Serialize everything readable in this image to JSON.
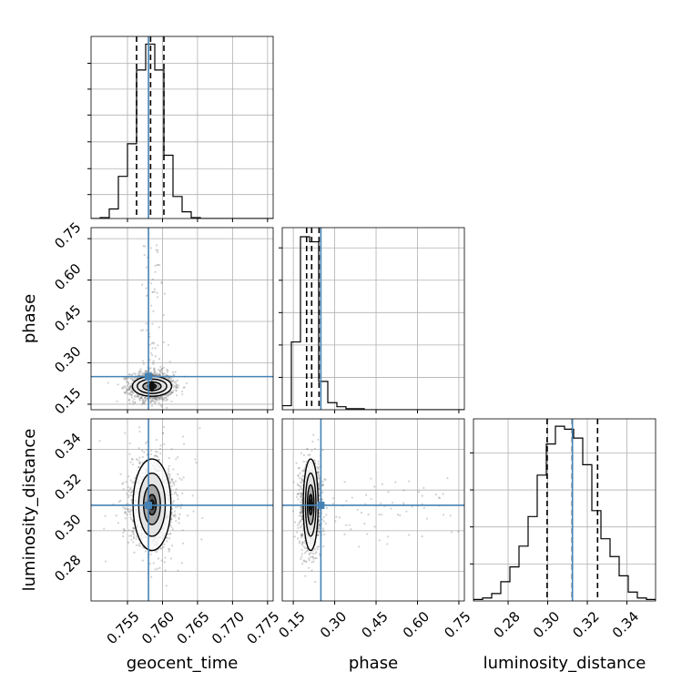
{
  "chart_data": {
    "type": "corner",
    "parameters": [
      "geocent_time",
      "phase",
      "luminosity_distance"
    ],
    "truths": {
      "geocent_time": 0.758,
      "phase": 0.25,
      "luminosity_distance": 0.3125
    },
    "colors": {
      "truth": "#4682b4",
      "histogram": "#000000",
      "grid": "#b0b0b0",
      "scatter": "#7f7f7f"
    },
    "grid": true,
    "panels": {
      "geocent_time": {
        "xlim": [
          0.7498,
          0.7758
        ],
        "ticks": [
          0.755,
          0.76,
          0.765,
          0.77,
          0.775
        ],
        "tick_labels": [
          "0.755",
          "0.760",
          "0.765",
          "0.770",
          "0.775"
        ],
        "quantiles": [
          0.7563,
          0.7583,
          0.7602
        ],
        "hist_edges": [
          0.7498,
          0.7511,
          0.7524,
          0.7537,
          0.755,
          0.7563,
          0.7576,
          0.7589,
          0.7602,
          0.7615,
          0.7628,
          0.7641,
          0.7654,
          0.7667,
          0.768,
          0.7693,
          0.7706,
          0.7719,
          0.7732,
          0.7745,
          0.7758
        ],
        "hist_values": [
          0,
          1,
          10,
          44,
          78,
          155,
          182,
          155,
          66,
          23,
          7,
          1,
          0,
          0,
          0,
          0,
          0,
          0,
          0,
          0
        ]
      },
      "phase": {
        "xlim": [
          0.11,
          0.77
        ],
        "ticks": [
          0.15,
          0.3,
          0.45,
          0.6,
          0.75
        ],
        "tick_labels": [
          "0.15",
          "0.30",
          "0.45",
          "0.60",
          "0.75"
        ],
        "quantiles": [
          0.1983,
          0.2166,
          0.2433
        ],
        "hist_edges": [
          0.11,
          0.143,
          0.176,
          0.209,
          0.242,
          0.275,
          0.308,
          0.341,
          0.374,
          0.407,
          0.44,
          0.473,
          0.506,
          0.539,
          0.572,
          0.605,
          0.638,
          0.671,
          0.704,
          0.737,
          0.77
        ],
        "hist_values": [
          4,
          67,
          171,
          166,
          28,
          7,
          3,
          1,
          1,
          0,
          0,
          0,
          0,
          0,
          0,
          0,
          0,
          0,
          0,
          0
        ]
      },
      "luminosity_distance": {
        "xlim": [
          0.2625,
          0.3545
        ],
        "ticks": [
          0.28,
          0.3,
          0.32,
          0.34
        ],
        "tick_labels": [
          "0.28",
          "0.30",
          "0.32",
          "0.34"
        ],
        "quantiles": [
          0.2997,
          0.3124,
          0.3252
        ],
        "hist_edges": [
          0.2625,
          0.2671,
          0.2717,
          0.2763,
          0.2809,
          0.2855,
          0.2901,
          0.2947,
          0.2993,
          0.3039,
          0.3085,
          0.3131,
          0.3177,
          0.3223,
          0.3269,
          0.3315,
          0.3361,
          0.3407,
          0.3453,
          0.3499,
          0.3545
        ],
        "hist_values": [
          1,
          2,
          5,
          13,
          23,
          37,
          57,
          85,
          106,
          118,
          116,
          110,
          92,
          61,
          42,
          30,
          17,
          6,
          2,
          1
        ]
      }
    },
    "diag_yticks": {
      "geocent_time": [
        25,
        52,
        80,
        108,
        135,
        162
      ],
      "phase": [
        32,
        64,
        96,
        128,
        160
      ],
      "luminosity_distance": [
        25,
        50,
        75,
        100
      ]
    },
    "diag_ylim": {
      "geocent_time": [
        0,
        190
      ],
      "phase": [
        0,
        180
      ],
      "luminosity_distance": [
        0,
        123
      ]
    },
    "ylims": {
      "phase": [
        0.13,
        0.79
      ],
      "luminosity_distance": [
        0.2655,
        0.355
      ]
    },
    "yticks": {
      "phase": {
        "values": [
          0.15,
          0.3,
          0.45,
          0.6,
          0.75
        ],
        "labels": [
          "0.15",
          "0.30",
          "0.45",
          "0.60",
          "0.75"
        ]
      },
      "luminosity_distance": {
        "values": [
          0.28,
          0.3,
          0.32,
          0.34
        ],
        "labels": [
          "0.28",
          "0.30",
          "0.32",
          "0.34"
        ]
      }
    },
    "posterior_2d": {
      "phase_vs_geocent_time": {
        "mean": [
          0.7585,
          0.215
        ],
        "sd": [
          0.00155,
          0.026
        ],
        "contour_semi_axes": [
          [
            0.0006,
            0.008
          ],
          [
            0.0013,
            0.016
          ],
          [
            0.0021,
            0.026
          ],
          [
            0.0028,
            0.036
          ]
        ]
      },
      "luminosity_distance_vs_geocent_time": {
        "mean": [
          0.7585,
          0.3128
        ],
        "sd": [
          0.00155,
          0.0105
        ],
        "contour_semi_axes": [
          [
            0.0006,
            0.005
          ],
          [
            0.0012,
            0.0098
          ],
          [
            0.0019,
            0.0155
          ],
          [
            0.0027,
            0.0225
          ]
        ]
      },
      "luminosity_distance_vs_phase": {
        "mean": [
          0.213,
          0.3128
        ],
        "sd": [
          0.018,
          0.0105
        ],
        "contour_semi_axes": [
          [
            0.006,
            0.005
          ],
          [
            0.012,
            0.0098
          ],
          [
            0.019,
            0.0155
          ],
          [
            0.027,
            0.0225
          ]
        ]
      }
    }
  }
}
